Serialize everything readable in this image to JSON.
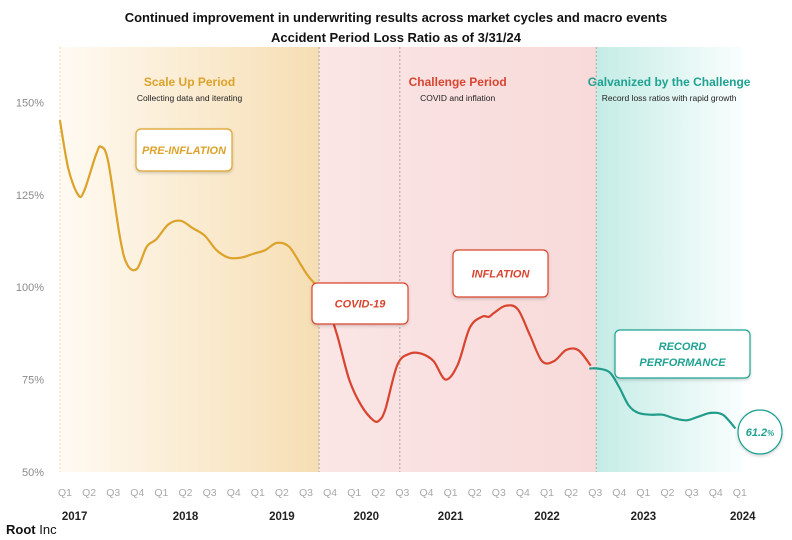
{
  "header": {
    "title": "Continued improvement in underwriting results across market cycles and macro events",
    "subtitle": "Accident Period Loss Ratio as of 3/31/24"
  },
  "brand": {
    "name": "Root",
    "suffix": "Inc"
  },
  "chart_data": {
    "type": "line",
    "title": "Continued improvement in underwriting results across market cycles and macro events",
    "subtitle": "Accident Period Loss Ratio as of 3/31/24",
    "xlabel": "",
    "ylabel": "",
    "ylim": [
      50,
      165
    ],
    "y_ticks": [
      50,
      75,
      100,
      125,
      150
    ],
    "y_tick_labels": [
      "50%",
      "75%",
      "100%",
      "125%",
      "150%"
    ],
    "grid": false,
    "categories": [
      "Q1",
      "Q2",
      "Q3",
      "Q4",
      "Q1",
      "Q2",
      "Q3",
      "Q4",
      "Q1",
      "Q2",
      "Q3",
      "Q4",
      "Q1",
      "Q2",
      "Q3",
      "Q4",
      "Q1",
      "Q2",
      "Q3",
      "Q4",
      "Q1",
      "Q2",
      "Q3",
      "Q4",
      "Q1",
      "Q2",
      "Q3",
      "Q4",
      "Q1"
    ],
    "years": [
      {
        "label": "2017",
        "from": 0,
        "to": 3
      },
      {
        "label": "2018",
        "from": 3,
        "to": 7
      },
      {
        "label": "2019",
        "from": 7,
        "to": 11
      },
      {
        "label": "2020",
        "from": 11,
        "to": 14
      },
      {
        "label": "2021",
        "from": 14,
        "to": 18
      },
      {
        "label": "2022",
        "from": 18,
        "to": 22
      },
      {
        "label": "2023",
        "from": 22,
        "to": 26
      },
      {
        "label": "2024",
        "from": 26,
        "to": 28
      }
    ],
    "series": [
      {
        "x": [
          0,
          0.35,
          0.75,
          1,
          1.5,
          1.7,
          2,
          2.5,
          2.8,
          3.2,
          3.6,
          4,
          4.5,
          5,
          5.5,
          6,
          6.5,
          7,
          7.5,
          8,
          8.5,
          9,
          9.5,
          10,
          10.3,
          10.7
        ],
        "values": [
          145,
          132,
          125,
          126,
          136,
          138,
          134,
          113,
          106,
          105,
          111,
          113,
          117,
          118,
          116,
          114,
          110,
          108,
          108,
          109,
          110,
          112,
          111,
          106,
          103,
          100
        ],
        "color": "#dca22a"
      },
      {
        "x": [
          10.7,
          11,
          11.5,
          12,
          12.5,
          13,
          13.25,
          13.5,
          14,
          14.5,
          15,
          15.5,
          16,
          16.5,
          17,
          17.5,
          17.8,
          18,
          18.5,
          19,
          19.5,
          20,
          20.5,
          21,
          21.5,
          22
        ],
        "values": [
          100,
          97,
          87,
          75,
          68,
          64,
          64,
          67,
          79,
          82,
          82,
          80,
          75,
          79,
          89,
          92,
          92,
          93,
          95,
          94,
          87,
          80,
          80,
          83,
          83,
          79
        ],
        "color": "#d8442f"
      },
      {
        "x": [
          22,
          22.3,
          22.8,
          23.2,
          23.6,
          24,
          24.5,
          25,
          25.5,
          26,
          26.5,
          27,
          27.5,
          28
        ],
        "values": [
          78,
          78,
          77,
          73,
          68,
          66,
          65.5,
          65.5,
          64.5,
          64,
          65,
          66,
          65.5,
          62
        ],
        "color": "#219c8a"
      }
    ],
    "final_label": "61.2",
    "final_label_unit": "%",
    "colors": {
      "scale_up": "#dca22a",
      "challenge": "#d8442f",
      "galvanized": "#1fa291"
    },
    "periods": [
      {
        "title": "Scale Up Period",
        "subtitle": "Collecting data and iterating",
        "from": 0,
        "to": 10.75
      },
      {
        "title": "Challenge Period",
        "subtitle": "COVID and inflation",
        "from": 10.75,
        "to": 22.25
      },
      {
        "title": "Galvanized by the Challenge",
        "subtitle": "Record loss ratios with rapid growth",
        "from": 22.25,
        "to": 28.3
      }
    ],
    "annotations": [
      {
        "label": "PRE-INFLATION",
        "lines": [
          "PRE-INFLATION"
        ],
        "color": "#dca22a"
      },
      {
        "label": "COVID-19",
        "lines": [
          "COVID-19"
        ],
        "color": "#d8442f"
      },
      {
        "label": "INFLATION",
        "lines": [
          "INFLATION"
        ],
        "color": "#d8442f"
      },
      {
        "label": "RECORD PERFORMANCE",
        "lines": [
          "RECORD",
          "PERFORMANCE"
        ],
        "color": "#1fa291"
      }
    ]
  }
}
